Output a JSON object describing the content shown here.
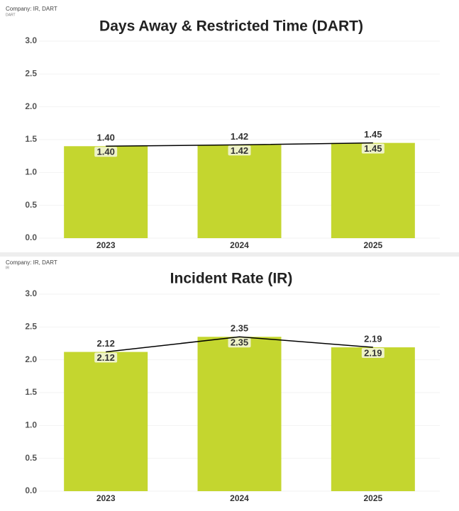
{
  "chart_data": [
    {
      "type": "bar",
      "panel_title": "Company: IR, DART",
      "panel_subtitle": "DART",
      "title": "Days Away & Restricted Time (DART)",
      "categories": [
        "2023",
        "2024",
        "2025"
      ],
      "series": [
        {
          "type": "bar",
          "color": "#c4d62f",
          "values": [
            1.4,
            1.42,
            1.45
          ],
          "value_labels": [
            "1.40",
            "1.42",
            "1.45"
          ]
        },
        {
          "type": "line",
          "color": "#000000",
          "values": [
            1.4,
            1.42,
            1.45
          ],
          "value_labels": [
            "1.40",
            "1.42",
            "1.45"
          ]
        }
      ],
      "ylim": [
        0,
        3
      ],
      "yticks": [
        {
          "value": 0,
          "label": "0.0"
        },
        {
          "value": 0.5,
          "label": "0.5"
        },
        {
          "value": 1,
          "label": "1.0"
        },
        {
          "value": 1.5,
          "label": "1.5"
        },
        {
          "value": 2,
          "label": "2.0"
        },
        {
          "value": 2.5,
          "label": "2.5"
        },
        {
          "value": 3,
          "label": "3.0"
        }
      ],
      "grid": true
    },
    {
      "type": "bar",
      "panel_title": "Company: IR, DART",
      "panel_subtitle": "IR",
      "title": "Incident Rate (IR)",
      "categories": [
        "2023",
        "2024",
        "2025"
      ],
      "series": [
        {
          "type": "bar",
          "color": "#c4d62f",
          "values": [
            2.12,
            2.35,
            2.19
          ],
          "value_labels": [
            "2.12",
            "2.35",
            "2.19"
          ]
        },
        {
          "type": "line",
          "color": "#000000",
          "values": [
            2.12,
            2.35,
            2.19
          ],
          "value_labels": [
            "2.12",
            "2.35",
            "2.19"
          ]
        }
      ],
      "ylim": [
        0,
        3
      ],
      "yticks": [
        {
          "value": 0,
          "label": "0.0"
        },
        {
          "value": 0.5,
          "label": "0.5"
        },
        {
          "value": 1,
          "label": "1.0"
        },
        {
          "value": 1.5,
          "label": "1.5"
        },
        {
          "value": 2,
          "label": "2.0"
        },
        {
          "value": 2.5,
          "label": "2.5"
        },
        {
          "value": 3,
          "label": "3.0"
        }
      ],
      "grid": true
    }
  ]
}
